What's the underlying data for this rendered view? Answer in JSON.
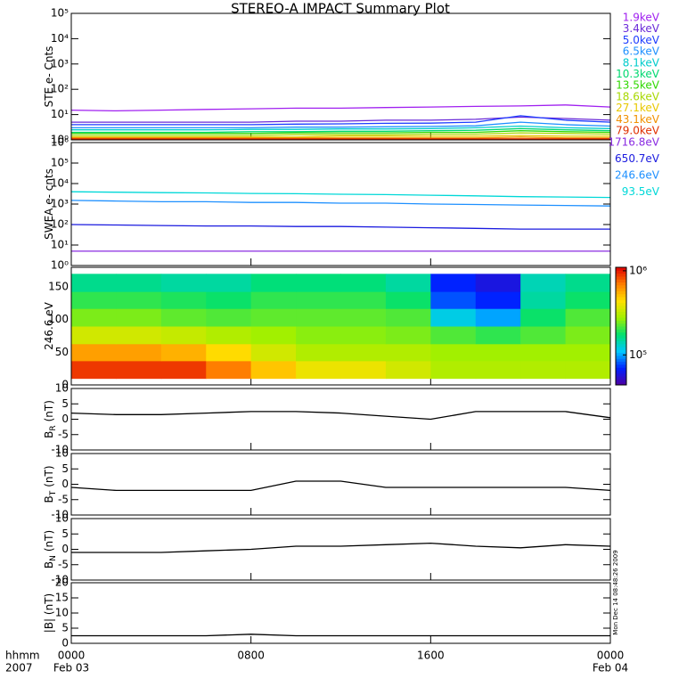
{
  "chart_data": [
    {
      "type": "line",
      "title": "STEREO-A IMPACT Summary Plot",
      "ylabel": "STE e- Cnts",
      "log": true,
      "ylim": [
        1,
        100000
      ],
      "yticks": [
        {
          "value": 1,
          "label": "10⁰"
        },
        {
          "value": 10,
          "label": "10¹"
        },
        {
          "value": 100,
          "label": "10²"
        },
        {
          "value": 1000,
          "label": "10³"
        },
        {
          "value": 10000,
          "label": "10⁴"
        },
        {
          "value": 100000,
          "label": "10⁵"
        }
      ],
      "xlim": [
        0,
        24
      ],
      "x": [
        0,
        2,
        4,
        6,
        8,
        10,
        12,
        14,
        16,
        18,
        20,
        22,
        24
      ],
      "series": [
        {
          "name": "1.9keV",
          "color": "#a020f0",
          "values": [
            15,
            14,
            15,
            16,
            17,
            18,
            18,
            19,
            20,
            21,
            22,
            24,
            20
          ]
        },
        {
          "name": "3.4keV",
          "color": "#6a2ad8",
          "values": [
            5,
            5,
            5,
            5,
            5,
            5.5,
            5.5,
            6,
            6,
            6.5,
            8,
            7,
            6
          ]
        },
        {
          "name": "5.0keV",
          "color": "#1e3cff",
          "values": [
            4,
            4,
            4,
            4,
            4,
            4.2,
            4.3,
            4.5,
            4.6,
            5,
            9,
            6,
            5
          ]
        },
        {
          "name": "6.5keV",
          "color": "#1e90ff",
          "values": [
            3,
            3,
            3,
            3,
            3,
            3.2,
            3.2,
            3.3,
            3.4,
            3.6,
            5,
            4,
            3.5
          ]
        },
        {
          "name": "8.1keV",
          "color": "#00cccc",
          "values": [
            2.5,
            2.5,
            2.5,
            2.5,
            2.6,
            2.6,
            2.7,
            2.7,
            2.8,
            3,
            3.5,
            3,
            2.8
          ]
        },
        {
          "name": "10.3keV",
          "color": "#00d870",
          "values": [
            2,
            2,
            2,
            2,
            2.1,
            2.1,
            2.2,
            2.2,
            2.3,
            2.4,
            2.8,
            2.5,
            2.3
          ]
        },
        {
          "name": "13.5keV",
          "color": "#30d800",
          "values": [
            1.8,
            1.8,
            1.8,
            1.8,
            1.8,
            1.9,
            1.9,
            1.9,
            2,
            2,
            2.3,
            2.1,
            2
          ]
        },
        {
          "name": "18.6keV",
          "color": "#a8d800",
          "values": [
            1.5,
            1.5,
            1.5,
            1.5,
            1.5,
            1.6,
            1.6,
            1.6,
            1.7,
            1.7,
            1.9,
            1.8,
            1.7
          ]
        },
        {
          "name": "27.1keV",
          "color": "#e8c800",
          "values": [
            1.3,
            1.3,
            1.3,
            1.3,
            1.3,
            1.3,
            1.4,
            1.4,
            1.4,
            1.4,
            1.5,
            1.4,
            1.4
          ]
        },
        {
          "name": "43.1keV",
          "color": "#f09000",
          "values": [
            1.2,
            1.2,
            1.2,
            1.2,
            1.2,
            1.2,
            1.2,
            1.2,
            1.2,
            1.2,
            1.3,
            1.2,
            1.2
          ]
        },
        {
          "name": "79.0keV",
          "color": "#e03000",
          "values": [
            1.1,
            1.1,
            1.1,
            1.1,
            1.1,
            1.1,
            1.1,
            1.1,
            1.1,
            1.1,
            1.1,
            1.1,
            1.1
          ]
        }
      ]
    },
    {
      "type": "line",
      "ylabel": "SWEA e- cnts",
      "log": true,
      "ylim": [
        1,
        1000000
      ],
      "yticks": [
        {
          "value": 1,
          "label": "10⁰"
        },
        {
          "value": 10,
          "label": "10¹"
        },
        {
          "value": 100,
          "label": "10²"
        },
        {
          "value": 1000,
          "label": "10³"
        },
        {
          "value": 10000,
          "label": "10⁴"
        },
        {
          "value": 100000,
          "label": "10⁵"
        },
        {
          "value": 1000000,
          "label": "10⁶"
        }
      ],
      "xlim": [
        0,
        24
      ],
      "x": [
        0,
        2,
        4,
        6,
        8,
        10,
        12,
        14,
        16,
        18,
        20,
        22,
        24
      ],
      "series": [
        {
          "name": "1716.8eV",
          "color": "#8a2be2",
          "values": [
            5,
            5,
            5,
            5,
            5,
            5,
            5,
            5,
            5,
            5,
            5,
            5,
            5
          ]
        },
        {
          "name": "650.7eV",
          "color": "#1a1adf",
          "values": [
            100,
            95,
            90,
            85,
            85,
            80,
            80,
            75,
            70,
            65,
            60,
            60,
            60
          ]
        },
        {
          "name": "246.6eV",
          "color": "#1e90ff",
          "values": [
            1500,
            1400,
            1300,
            1300,
            1200,
            1200,
            1100,
            1100,
            1000,
            950,
            900,
            850,
            800
          ]
        },
        {
          "name": "93.5eV",
          "color": "#00d8d8",
          "values": [
            4000,
            3800,
            3600,
            3500,
            3300,
            3200,
            3000,
            2900,
            2700,
            2500,
            2300,
            2200,
            2100
          ]
        }
      ]
    },
    {
      "type": "heatmap",
      "ylabel": "246.6 eV",
      "ylim": [
        0,
        180
      ],
      "yticks": [
        0,
        50,
        100,
        150
      ],
      "xlim": [
        0,
        24
      ],
      "xbins": [
        0,
        2,
        4,
        6,
        8,
        10,
        12,
        14,
        16,
        18,
        20,
        22,
        24
      ],
      "ybins": [
        10,
        37,
        63,
        90,
        117,
        143,
        170
      ],
      "values": [
        [
          900000,
          900000,
          900000,
          700000,
          500000,
          400000,
          400000,
          350000,
          300000,
          300000,
          300000,
          300000
        ],
        [
          600000,
          600000,
          550000,
          450000,
          350000,
          300000,
          300000,
          300000,
          280000,
          280000,
          280000,
          280000
        ],
        [
          350000,
          350000,
          330000,
          300000,
          280000,
          260000,
          260000,
          250000,
          220000,
          200000,
          220000,
          250000
        ],
        [
          250000,
          250000,
          230000,
          220000,
          230000,
          230000,
          230000,
          220000,
          120000,
          100000,
          180000,
          220000
        ],
        [
          200000,
          200000,
          190000,
          180000,
          200000,
          200000,
          200000,
          180000,
          80000,
          70000,
          150000,
          180000
        ],
        [
          160000,
          160000,
          150000,
          150000,
          170000,
          170000,
          170000,
          150000,
          70000,
          60000,
          140000,
          160000
        ]
      ],
      "clim": [
        44000,
        1100000
      ],
      "cticks": [
        {
          "value": 100000,
          "label": "10⁵"
        },
        {
          "value": 1000000,
          "label": "10⁶"
        }
      ],
      "colorscale": [
        "#5000a0",
        "#0020ff",
        "#00c8ff",
        "#00e070",
        "#a0f000",
        "#ffe000",
        "#ff8000",
        "#e00000"
      ]
    },
    {
      "type": "line",
      "ylabel": "B",
      "ylabel_sub": "R",
      "ylabel_unit": "(nT)",
      "ylim": [
        -10,
        10
      ],
      "yticks": [
        -10,
        -5,
        0,
        5,
        10
      ],
      "xlim": [
        0,
        24
      ],
      "x": [
        0,
        2,
        4,
        6,
        8,
        10,
        12,
        14,
        16,
        18,
        20,
        22,
        24
      ],
      "series": [
        {
          "color": "#000000",
          "values": [
            2,
            1.5,
            1.5,
            2,
            2.5,
            2.5,
            2,
            1,
            0,
            2.5,
            2.5,
            2.5,
            0.5
          ]
        }
      ]
    },
    {
      "type": "line",
      "ylabel": "B",
      "ylabel_sub": "T",
      "ylabel_unit": "(nT)",
      "ylim": [
        -10,
        10
      ],
      "yticks": [
        -10,
        -5,
        0,
        5,
        10
      ],
      "xlim": [
        0,
        24
      ],
      "x": [
        0,
        2,
        4,
        6,
        8,
        10,
        12,
        14,
        16,
        18,
        20,
        22,
        24
      ],
      "series": [
        {
          "color": "#000000",
          "values": [
            -1,
            -2,
            -2,
            -2,
            -2,
            1,
            1,
            -1,
            -1,
            -1,
            -1,
            -1,
            -2
          ]
        }
      ]
    },
    {
      "type": "line",
      "ylabel": "B",
      "ylabel_sub": "N",
      "ylabel_unit": "(nT)",
      "ylim": [
        -10,
        10
      ],
      "yticks": [
        -10,
        -5,
        0,
        5,
        10
      ],
      "xlim": [
        0,
        24
      ],
      "x": [
        0,
        2,
        4,
        6,
        8,
        10,
        12,
        14,
        16,
        18,
        20,
        22,
        24
      ],
      "series": [
        {
          "color": "#000000",
          "values": [
            -1,
            -1,
            -1,
            -0.5,
            0,
            1,
            1,
            1.5,
            2,
            1,
            0.5,
            1.5,
            1
          ]
        }
      ]
    },
    {
      "type": "line",
      "ylabel": "|B| (nT)",
      "ylim": [
        0,
        20
      ],
      "yticks": [
        0,
        5,
        10,
        15,
        20
      ],
      "xlim": [
        0,
        24
      ],
      "x": [
        0,
        2,
        4,
        6,
        8,
        10,
        12,
        14,
        16,
        18,
        20,
        22,
        24
      ],
      "series": [
        {
          "color": "#000000",
          "values": [
            2.5,
            2.5,
            2.5,
            2.5,
            3,
            2.5,
            2.5,
            2.5,
            2.5,
            2.5,
            2.5,
            2.5,
            2.5
          ]
        }
      ],
      "xticks": [
        {
          "value": 0,
          "label": "0000"
        },
        {
          "value": 8,
          "label": "0800"
        },
        {
          "value": 16,
          "label": "1600"
        },
        {
          "value": 24,
          "label": "0000"
        }
      ],
      "date_labels": [
        {
          "value": 0,
          "label": "Feb 03"
        },
        {
          "value": 24,
          "label": "Feb 04"
        }
      ],
      "xlabel": "hhmm",
      "year": "2007",
      "annotation": "Mon Dec 14 08:48:26 2009"
    }
  ]
}
